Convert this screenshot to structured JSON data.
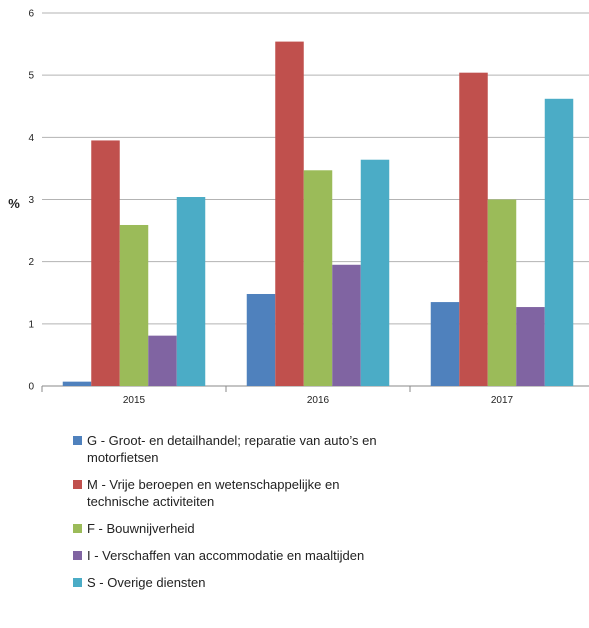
{
  "chart_data": {
    "type": "bar",
    "categories": [
      "2015",
      "2016",
      "2017"
    ],
    "ylabel": "%",
    "xlabel": "",
    "ylim": [
      0,
      6
    ],
    "yticks": [
      0,
      1,
      2,
      3,
      4,
      5,
      6
    ],
    "grid": "horizontal",
    "legend_position": "bottom",
    "series": [
      {
        "name": "G - Groot- en detailhandel; reparatie van auto’s en motorfietsen",
        "color": "#4F81BD",
        "values": [
          0.07,
          1.48,
          1.35
        ]
      },
      {
        "name": "M - Vrije beroepen en wetenschappelijke en technische activiteiten",
        "color": "#C0504D",
        "values": [
          3.95,
          5.54,
          5.04
        ]
      },
      {
        "name": "F - Bouwnijverheid",
        "color": "#9BBB59",
        "values": [
          2.59,
          3.47,
          3.0
        ]
      },
      {
        "name": "I - Verschaffen van accommodatie en maaltijden",
        "color": "#8064A2",
        "values": [
          0.81,
          1.95,
          1.27
        ]
      },
      {
        "name": "S - Overige diensten",
        "color": "#4BACC6",
        "values": [
          3.04,
          3.64,
          4.62
        ]
      }
    ]
  }
}
